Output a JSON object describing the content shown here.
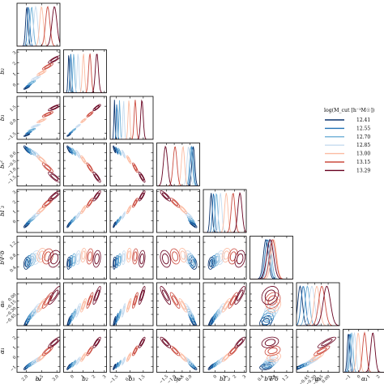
{
  "chart_data": {
    "type": "corner",
    "parameters": [
      "b_1",
      "b_2",
      "b_3",
      "b_{s^2}",
      "b_{Γ_3}",
      "b_{∇²δ}",
      "α_0",
      "α_1"
    ],
    "axis_labels": [
      "b₁",
      "b₂",
      "b₃",
      "bₛ²",
      "bΓ₃",
      "b∇²δ",
      "α₀",
      "α₁"
    ],
    "ranges": [
      [
        1.7,
        3.1
      ],
      [
        -0.8,
        3.2
      ],
      [
        -2.2,
        2.6
      ],
      [
        -2.1,
        0.6
      ],
      [
        -1.2,
        3.2
      ],
      [
        0.0,
        1.4
      ],
      [
        -0.7,
        0.25
      ],
      [
        -1.6,
        2.8
      ]
    ],
    "ticks": [
      [
        2.0,
        2.5,
        3.0
      ],
      [
        0,
        1,
        2,
        3
      ],
      [
        -1.5,
        0.0,
        1.5
      ],
      [
        -1.5,
        -1.0,
        -0.5,
        0.0
      ],
      [
        0,
        1,
        2,
        3
      ],
      [
        0.4,
        0.8,
        1.2
      ],
      [
        -0.45,
        -0.3,
        -0.15,
        0.0
      ],
      [
        -1,
        0,
        1,
        2
      ]
    ],
    "tick_labels": [
      [
        "2.0",
        "2.5",
        "3.0"
      ],
      [
        "0",
        "1",
        "2",
        "3"
      ],
      [
        "−1.5",
        "0.0",
        "1.5"
      ],
      [
        "−1.5",
        "−1.0",
        "−0.5",
        "0.0"
      ],
      [
        "0",
        "1",
        "2",
        "3"
      ],
      [
        "0.4",
        "0.8",
        "1.2"
      ],
      [
        "−0.45",
        "−0.30",
        "−0.15",
        "0.00"
      ],
      [
        "−1",
        "0",
        "1",
        "2"
      ]
    ],
    "legend": {
      "title": "log(M_cut [h⁻¹M☉])",
      "placement": "right"
    },
    "series": [
      {
        "name": "12.41",
        "color": "#08306b",
        "mean": [
          2.02,
          -0.31,
          -1.72,
          0.2,
          -0.4,
          0.52,
          -0.62,
          -1.05
        ],
        "sigma": [
          0.04,
          0.07,
          0.06,
          0.09,
          0.12,
          0.08,
          0.05,
          0.12
        ]
      },
      {
        "name": "12.55",
        "color": "#2171b5",
        "mean": [
          2.08,
          -0.12,
          -1.45,
          0.12,
          -0.15,
          0.57,
          -0.55,
          -0.9
        ],
        "sigma": [
          0.04,
          0.07,
          0.06,
          0.09,
          0.12,
          0.08,
          0.05,
          0.12
        ]
      },
      {
        "name": "12.70",
        "color": "#6baed6",
        "mean": [
          2.18,
          0.15,
          -1.15,
          0.05,
          0.15,
          0.63,
          -0.46,
          -0.72
        ],
        "sigma": [
          0.05,
          0.08,
          0.07,
          0.09,
          0.13,
          0.08,
          0.05,
          0.14
        ]
      },
      {
        "name": "12.85",
        "color": "#c6dbef",
        "mean": [
          2.31,
          0.55,
          -0.7,
          -0.1,
          0.55,
          0.7,
          -0.36,
          -0.45
        ],
        "sigma": [
          0.06,
          0.09,
          0.08,
          0.1,
          0.15,
          0.09,
          0.06,
          0.16
        ]
      },
      {
        "name": "13.00",
        "color": "#fcbba1",
        "mean": [
          2.5,
          1.05,
          -0.1,
          -0.45,
          1.15,
          0.78,
          -0.25,
          -0.05
        ],
        "sigma": [
          0.06,
          0.1,
          0.1,
          0.1,
          0.17,
          0.09,
          0.06,
          0.18
        ]
      },
      {
        "name": "13.15",
        "color": "#cb4b3f",
        "mean": [
          2.7,
          1.65,
          0.6,
          -0.95,
          1.85,
          0.74,
          -0.14,
          0.6
        ],
        "sigma": [
          0.07,
          0.12,
          0.12,
          0.12,
          0.19,
          0.1,
          0.07,
          0.2
        ]
      },
      {
        "name": "13.29",
        "color": "#67001f",
        "mean": [
          2.92,
          2.3,
          1.35,
          -1.55,
          2.55,
          0.66,
          -0.03,
          1.45
        ],
        "sigma": [
          0.08,
          0.14,
          0.14,
          0.13,
          0.21,
          0.11,
          0.08,
          0.22
        ]
      }
    ]
  }
}
